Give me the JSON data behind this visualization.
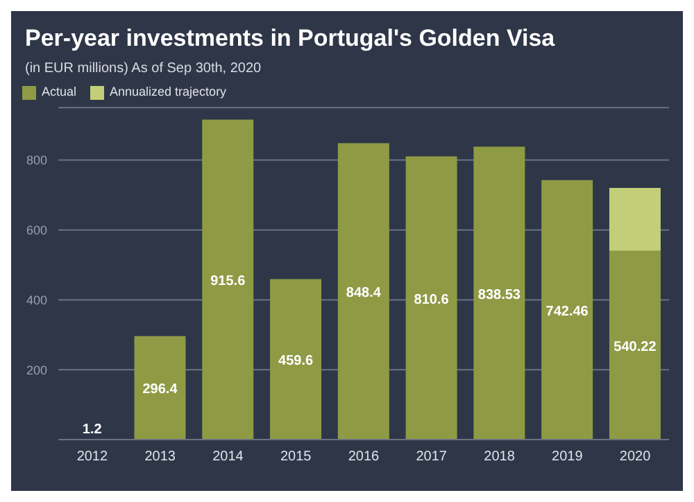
{
  "chart_data": {
    "type": "bar",
    "title": "Per-year investments in Portugal's Golden Visa",
    "subtitle": "(in EUR millions) As of Sep 30th, 2020",
    "categories": [
      "2012",
      "2013",
      "2014",
      "2015",
      "2016",
      "2017",
      "2018",
      "2019",
      "2020"
    ],
    "stacked": true,
    "series": [
      {
        "name": "Actual",
        "color": "#8f9a45",
        "values": [
          1.2,
          296.4,
          915.6,
          459.6,
          848.4,
          810.6,
          838.53,
          742.46,
          540.22
        ],
        "value_labels": [
          "1.2",
          "296.4",
          "915.6",
          "459.6",
          "848.4",
          "810.6",
          "838.53",
          "742.46",
          "540.22"
        ]
      },
      {
        "name": "Annualized trajectory",
        "color": "#c2cf78",
        "values": [
          null,
          null,
          null,
          null,
          null,
          null,
          null,
          null,
          180
        ]
      }
    ],
    "ylim": [
      0,
      950
    ],
    "yticks": [
      200,
      400,
      600,
      800
    ],
    "grid": "y",
    "legend": "top left"
  }
}
